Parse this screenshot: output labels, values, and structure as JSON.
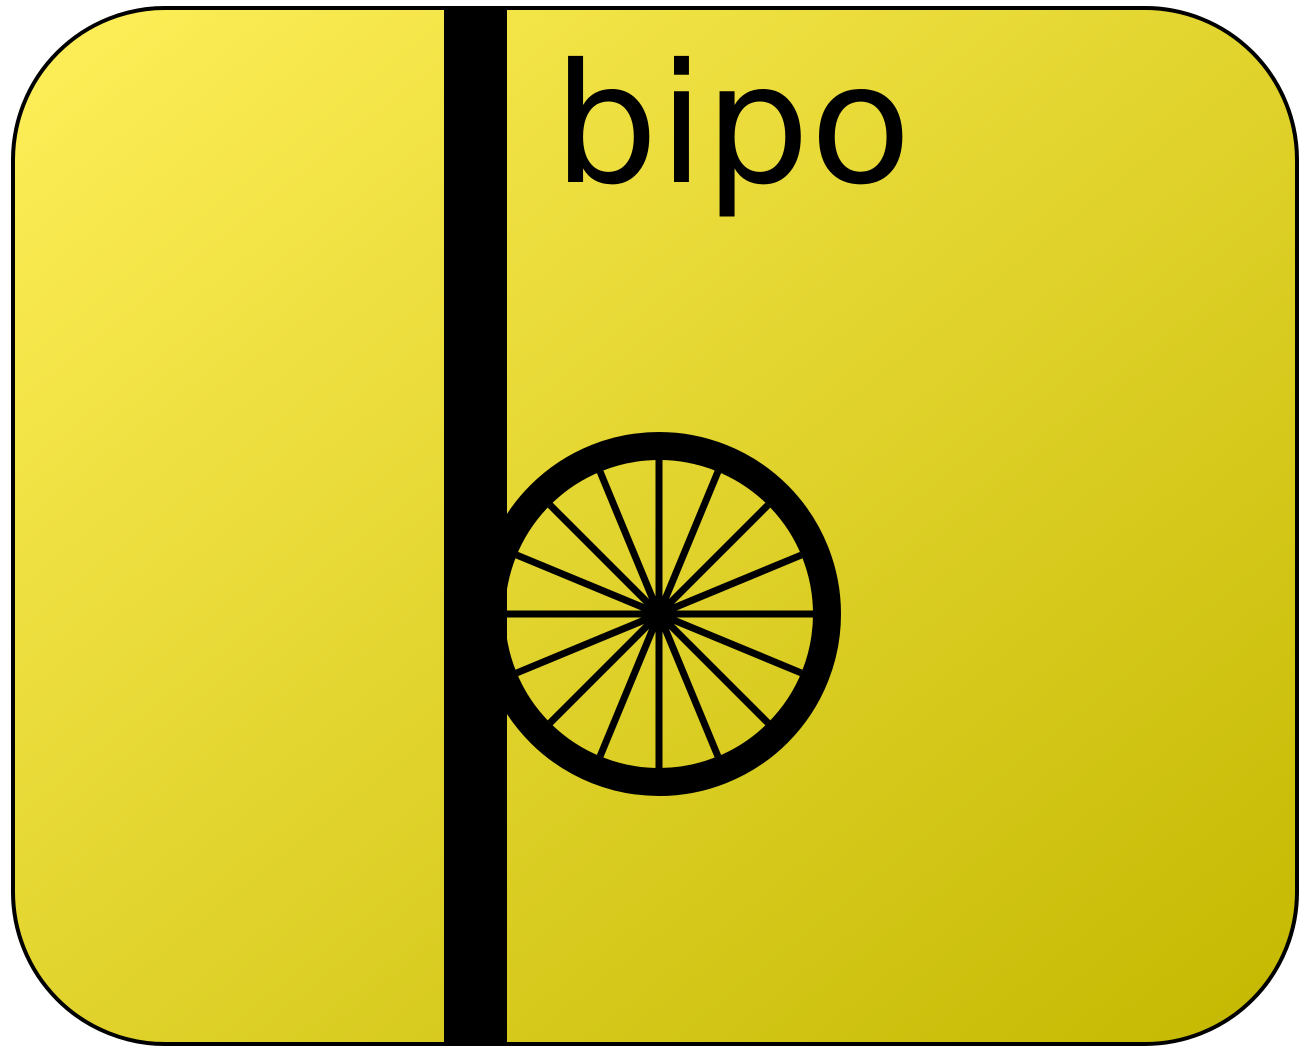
{
  "label": "bipo",
  "icon": "spoked-wheel-on-bar-icon",
  "colors": {
    "gradient_start": "#FFEF5A",
    "gradient_end": "#C4B800",
    "border": "#000000",
    "bar": "#000000",
    "wheel": "#000000"
  },
  "wheel": {
    "spoke_count": 16
  }
}
